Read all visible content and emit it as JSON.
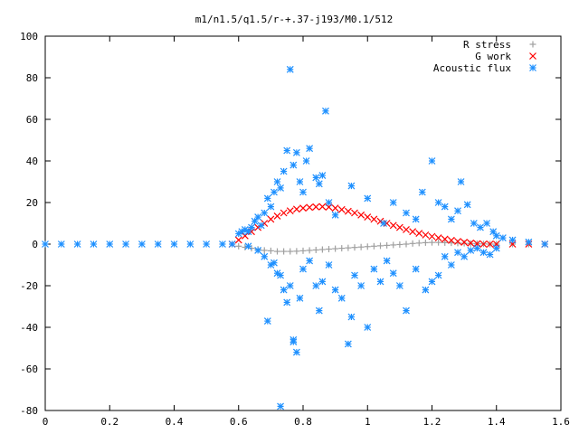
{
  "chart_data": {
    "type": "scatter",
    "title": "m1/n1.5/q1.5/r-+.37-j193/M0.1/512",
    "xlabel": "",
    "ylabel": "",
    "xlim": [
      0,
      1.6
    ],
    "ylim": [
      -80,
      100
    ],
    "x_ticks": [
      "0",
      "0.2",
      "0.4",
      "0.6",
      "0.8",
      "1",
      "1.2",
      "1.4",
      "1.6"
    ],
    "y_ticks": [
      "100",
      "80",
      "60",
      "40",
      "20",
      "0",
      "-20",
      "-40",
      "-60",
      "-80"
    ],
    "grid": false,
    "legend_position": "top-right",
    "series": [
      {
        "name": "R stress",
        "marker": "+",
        "color": "#a0a0a0",
        "points": [
          [
            0.58,
            0
          ],
          [
            0.6,
            -1
          ],
          [
            0.62,
            -1.5
          ],
          [
            0.64,
            -2
          ],
          [
            0.66,
            -2.5
          ],
          [
            0.68,
            -3
          ],
          [
            0.7,
            -3.2
          ],
          [
            0.72,
            -3.5
          ],
          [
            0.74,
            -3.5
          ],
          [
            0.76,
            -3.5
          ],
          [
            0.78,
            -3.4
          ],
          [
            0.8,
            -3.2
          ],
          [
            0.82,
            -3
          ],
          [
            0.84,
            -2.8
          ],
          [
            0.86,
            -2.6
          ],
          [
            0.88,
            -2.4
          ],
          [
            0.9,
            -2.2
          ],
          [
            0.92,
            -2
          ],
          [
            0.94,
            -1.8
          ],
          [
            0.96,
            -1.6
          ],
          [
            0.98,
            -1.4
          ],
          [
            1.0,
            -1.2
          ],
          [
            1.02,
            -1
          ],
          [
            1.04,
            -0.8
          ],
          [
            1.06,
            -0.6
          ],
          [
            1.08,
            -0.4
          ],
          [
            1.1,
            -0.2
          ],
          [
            1.12,
            0
          ],
          [
            1.14,
            0.3
          ],
          [
            1.16,
            0.5
          ],
          [
            1.18,
            0.7
          ],
          [
            1.2,
            0.8
          ],
          [
            1.22,
            0.8
          ],
          [
            1.24,
            0.7
          ],
          [
            1.26,
            0.6
          ],
          [
            1.28,
            0.5
          ],
          [
            1.3,
            0.4
          ],
          [
            1.32,
            0.3
          ],
          [
            1.34,
            0.2
          ],
          [
            1.36,
            0.1
          ],
          [
            1.38,
            0
          ],
          [
            1.4,
            0
          ],
          [
            1.45,
            0
          ],
          [
            1.5,
            0
          ],
          [
            1.55,
            0
          ]
        ]
      },
      {
        "name": "G work",
        "marker": "x",
        "color": "#ff0000",
        "points": [
          [
            0.58,
            0
          ],
          [
            0.6,
            2
          ],
          [
            0.62,
            4
          ],
          [
            0.64,
            6
          ],
          [
            0.66,
            8
          ],
          [
            0.68,
            10
          ],
          [
            0.7,
            12
          ],
          [
            0.72,
            13.5
          ],
          [
            0.74,
            15
          ],
          [
            0.76,
            16
          ],
          [
            0.78,
            16.8
          ],
          [
            0.8,
            17.3
          ],
          [
            0.82,
            17.7
          ],
          [
            0.84,
            17.9
          ],
          [
            0.86,
            18
          ],
          [
            0.88,
            17.8
          ],
          [
            0.9,
            17.3
          ],
          [
            0.92,
            16.6
          ],
          [
            0.94,
            15.8
          ],
          [
            0.96,
            15
          ],
          [
            0.98,
            14
          ],
          [
            1.0,
            13
          ],
          [
            1.02,
            12
          ],
          [
            1.04,
            11
          ],
          [
            1.06,
            10
          ],
          [
            1.08,
            9
          ],
          [
            1.1,
            8
          ],
          [
            1.12,
            7
          ],
          [
            1.14,
            6
          ],
          [
            1.16,
            5.2
          ],
          [
            1.18,
            4.4
          ],
          [
            1.2,
            3.7
          ],
          [
            1.22,
            3
          ],
          [
            1.24,
            2.4
          ],
          [
            1.26,
            1.8
          ],
          [
            1.28,
            1.3
          ],
          [
            1.3,
            0.9
          ],
          [
            1.32,
            0.5
          ],
          [
            1.34,
            0.2
          ],
          [
            1.36,
            0
          ],
          [
            1.38,
            0
          ],
          [
            1.4,
            0
          ],
          [
            1.45,
            0
          ],
          [
            1.5,
            0
          ],
          [
            1.55,
            0
          ]
        ]
      },
      {
        "name": "Acoustic flux",
        "marker": "*",
        "color": "#1e90ff",
        "points": [
          [
            0.0,
            0
          ],
          [
            0.05,
            0
          ],
          [
            0.1,
            0
          ],
          [
            0.15,
            0
          ],
          [
            0.2,
            0
          ],
          [
            0.25,
            0
          ],
          [
            0.3,
            0
          ],
          [
            0.35,
            0
          ],
          [
            0.4,
            0
          ],
          [
            0.45,
            0
          ],
          [
            0.5,
            0
          ],
          [
            0.55,
            0
          ],
          [
            0.58,
            0
          ],
          [
            0.6,
            5
          ],
          [
            0.61,
            6
          ],
          [
            0.62,
            7
          ],
          [
            0.63,
            6
          ],
          [
            0.64,
            8
          ],
          [
            0.65,
            11
          ],
          [
            0.66,
            13
          ],
          [
            0.67,
            9
          ],
          [
            0.68,
            15
          ],
          [
            0.69,
            22
          ],
          [
            0.7,
            18
          ],
          [
            0.71,
            25
          ],
          [
            0.72,
            30
          ],
          [
            0.73,
            27
          ],
          [
            0.74,
            35
          ],
          [
            0.75,
            45
          ],
          [
            0.76,
            84
          ],
          [
            0.77,
            38
          ],
          [
            0.78,
            44
          ],
          [
            0.79,
            30
          ],
          [
            0.8,
            25
          ],
          [
            0.81,
            40
          ],
          [
            0.82,
            46
          ],
          [
            0.84,
            32
          ],
          [
            0.85,
            29
          ],
          [
            0.86,
            33
          ],
          [
            0.87,
            64
          ],
          [
            0.88,
            20
          ],
          [
            0.9,
            14
          ],
          [
            0.95,
            28
          ],
          [
            1.0,
            22
          ],
          [
            1.05,
            10
          ],
          [
            1.08,
            20
          ],
          [
            1.12,
            15
          ],
          [
            1.15,
            12
          ],
          [
            1.17,
            25
          ],
          [
            1.2,
            40
          ],
          [
            1.22,
            20
          ],
          [
            1.24,
            18
          ],
          [
            1.26,
            12
          ],
          [
            1.28,
            16
          ],
          [
            1.29,
            30
          ],
          [
            1.31,
            19
          ],
          [
            1.33,
            10
          ],
          [
            1.35,
            8
          ],
          [
            1.37,
            10
          ],
          [
            1.39,
            6
          ],
          [
            1.4,
            4
          ],
          [
            1.42,
            3
          ],
          [
            1.45,
            2
          ],
          [
            1.5,
            1
          ],
          [
            1.55,
            0
          ],
          [
            0.63,
            -1
          ],
          [
            0.66,
            -3
          ],
          [
            0.68,
            -6
          ],
          [
            0.7,
            -10
          ],
          [
            0.71,
            -9
          ],
          [
            0.72,
            -14
          ],
          [
            0.73,
            -15
          ],
          [
            0.74,
            -22
          ],
          [
            0.75,
            -28
          ],
          [
            0.76,
            -20
          ],
          [
            0.77,
            -47
          ],
          [
            0.78,
            -52
          ],
          [
            0.79,
            -26
          ],
          [
            0.8,
            -12
          ],
          [
            0.82,
            -8
          ],
          [
            0.84,
            -20
          ],
          [
            0.85,
            -32
          ],
          [
            0.86,
            -18
          ],
          [
            0.88,
            -10
          ],
          [
            0.9,
            -22
          ],
          [
            0.92,
            -26
          ],
          [
            0.94,
            -48
          ],
          [
            0.95,
            -35
          ],
          [
            0.96,
            -15
          ],
          [
            0.98,
            -20
          ],
          [
            1.0,
            -40
          ],
          [
            1.02,
            -12
          ],
          [
            1.04,
            -18
          ],
          [
            1.06,
            -8
          ],
          [
            1.08,
            -14
          ],
          [
            1.1,
            -20
          ],
          [
            1.12,
            -32
          ],
          [
            1.15,
            -12
          ],
          [
            1.18,
            -22
          ],
          [
            1.2,
            -18
          ],
          [
            1.22,
            -15
          ],
          [
            1.24,
            -6
          ],
          [
            1.26,
            -10
          ],
          [
            1.28,
            -4
          ],
          [
            1.3,
            -6
          ],
          [
            1.32,
            -3
          ],
          [
            1.34,
            -2
          ],
          [
            1.36,
            -4
          ],
          [
            1.38,
            -5
          ],
          [
            1.4,
            -2
          ],
          [
            0.73,
            -78
          ],
          [
            0.69,
            -37
          ],
          [
            0.77,
            -46
          ]
        ]
      }
    ]
  }
}
